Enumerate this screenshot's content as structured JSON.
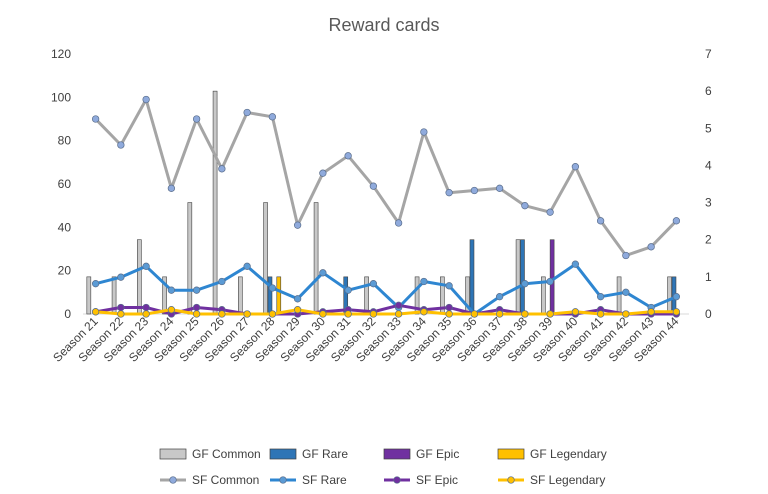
{
  "chart_data": {
    "type": "bar",
    "title": "Reward cards",
    "categories": [
      "Season 21",
      "Season 22",
      "Season 23",
      "Season 24",
      "Season 25",
      "Season 26",
      "Season 27",
      "Season 28",
      "Season 29",
      "Season 30",
      "Season 31",
      "Season 32",
      "Season 33",
      "Season 34",
      "Season 35",
      "Season 36",
      "Season 37",
      "Season 38",
      "Season 39",
      "Season 40",
      "Season 41",
      "Season 42",
      "Season 43",
      "Season 44"
    ],
    "y_left": {
      "min": 0,
      "max": 120,
      "ticks": [
        0,
        20,
        40,
        60,
        80,
        100,
        120
      ]
    },
    "y_right": {
      "min": 0,
      "max": 7,
      "ticks": [
        0,
        1,
        2,
        3,
        4,
        5,
        6,
        7
      ]
    },
    "bar_series": [
      {
        "name": "GF Common",
        "axis": "right",
        "color": "#c8c8c8",
        "values": [
          1,
          1,
          2,
          1,
          3,
          6,
          1,
          3,
          0,
          3,
          0,
          1,
          0,
          1,
          1,
          1,
          0,
          2,
          1,
          0,
          0,
          1,
          0,
          1
        ]
      },
      {
        "name": "GF Rare",
        "axis": "right",
        "color": "#2e75b6",
        "values": [
          0,
          0,
          0,
          0,
          0,
          0,
          0,
          1,
          0,
          0,
          1,
          0,
          0,
          0,
          0,
          2,
          0,
          2,
          0,
          0,
          0,
          0,
          0,
          1
        ]
      },
      {
        "name": "GF Epic",
        "axis": "right",
        "color": "#7030a0",
        "values": [
          0,
          0,
          0,
          0,
          0,
          0,
          0,
          0,
          0,
          0,
          0,
          0,
          0,
          0,
          0,
          0,
          0,
          0,
          2,
          0,
          0,
          0,
          0,
          0
        ]
      },
      {
        "name": "GF Legendary",
        "axis": "right",
        "color": "#ffc000",
        "values": [
          0,
          0,
          0,
          0,
          0,
          0,
          0,
          1,
          0,
          0,
          0,
          0,
          0,
          0,
          0,
          0,
          0,
          0,
          0,
          0,
          0,
          0,
          0,
          0
        ]
      }
    ],
    "line_series": [
      {
        "name": "SF Common",
        "axis": "left",
        "color": "#a5a5a5",
        "marker": "#8faadc",
        "values": [
          90,
          78,
          99,
          58,
          90,
          67,
          93,
          91,
          41,
          65,
          73,
          59,
          42,
          84,
          56,
          57,
          58,
          50,
          47,
          68,
          43,
          27,
          31,
          43
        ]
      },
      {
        "name": "SF Rare",
        "axis": "left",
        "color": "#2e86d1",
        "marker": "#5b9bd5",
        "values": [
          14,
          17,
          22,
          11,
          11,
          15,
          22,
          12,
          7,
          19,
          11,
          14,
          3,
          15,
          13,
          0,
          8,
          14,
          15,
          23,
          8,
          10,
          3,
          8
        ]
      },
      {
        "name": "SF Epic",
        "axis": "left",
        "color": "#7030a0",
        "marker": "#7030a0",
        "values": [
          1,
          3,
          3,
          0,
          3,
          2,
          0,
          0,
          0,
          1,
          2,
          1,
          4,
          2,
          3,
          0,
          2,
          0,
          0,
          0,
          2,
          0,
          0,
          0
        ]
      },
      {
        "name": "SF Legendary",
        "axis": "left",
        "color": "#ffc000",
        "marker": "#ffc000",
        "values": [
          1,
          0,
          0,
          2,
          0,
          0,
          0,
          0,
          2,
          0,
          0,
          0,
          0,
          1,
          0,
          0,
          0,
          0,
          0,
          1,
          0,
          0,
          1,
          1
        ]
      }
    ],
    "legend_position": "bottom",
    "grid": false
  }
}
